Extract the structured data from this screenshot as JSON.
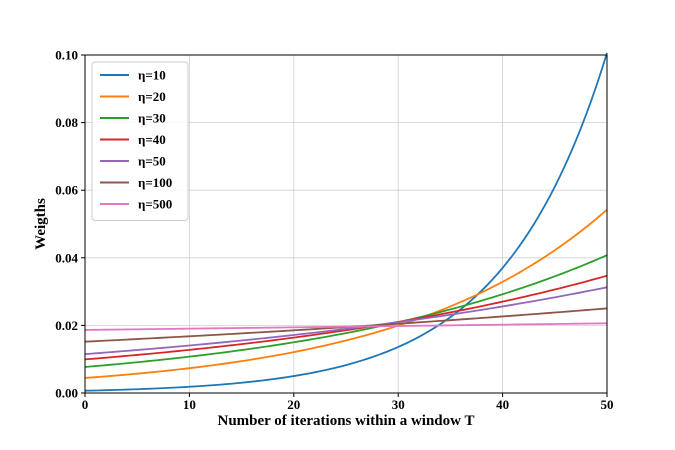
{
  "chart_data": {
    "type": "line",
    "title": "",
    "xlabel": "Number of iterations within a window T",
    "ylabel": "Weigths",
    "xlim": [
      0,
      50
    ],
    "ylim": [
      0,
      0.1
    ],
    "xticks": [
      "0",
      "10",
      "20",
      "30",
      "40",
      "50"
    ],
    "yticks": [
      "0.00",
      "0.02",
      "0.04",
      "0.06",
      "0.08",
      "0.10"
    ],
    "grid": true,
    "legend_position": "top-left",
    "x": [
      0,
      2.5,
      5,
      7.5,
      10,
      12.5,
      15,
      17.5,
      20,
      22.5,
      25,
      27.5,
      30,
      32.5,
      35,
      37.5,
      40,
      42.5,
      45,
      47.5,
      50
    ],
    "series": [
      {
        "name": "η=10",
        "eta": 10,
        "color": "#1f77b4",
        "values": [
          0.00066,
          0.00085,
          0.00109,
          0.0014,
          0.0018,
          0.0023,
          0.00296,
          0.00381,
          0.0049,
          0.00629,
          0.00808,
          0.01038,
          0.01333,
          0.01711,
          0.02197,
          0.02822,
          0.03624,
          0.04653,
          0.05975,
          0.07672,
          0.0985
        ]
      },
      {
        "name": "η=20",
        "eta": 20,
        "color": "#ff7f0e",
        "values": [
          0.00445,
          0.00504,
          0.00571,
          0.00647,
          0.00733,
          0.00831,
          0.00942,
          0.01067,
          0.01209,
          0.0137,
          0.01553,
          0.0176,
          0.01994,
          0.0226,
          0.02561,
          0.02902,
          0.03288,
          0.03726,
          0.04222,
          0.04785,
          0.05422
        ]
      },
      {
        "name": "η=30",
        "eta": 30,
        "color": "#2ca02c",
        "values": [
          0.00774,
          0.00839,
          0.00911,
          0.00989,
          0.01073,
          0.01164,
          0.01263,
          0.01371,
          0.01488,
          0.01615,
          0.01752,
          0.01902,
          0.02064,
          0.0224,
          0.02431,
          0.02638,
          0.02863,
          0.03107,
          0.03372,
          0.03659,
          0.03971
        ]
      },
      {
        "name": "η=40",
        "eta": 40,
        "color": "#d62728",
        "values": [
          0.01005,
          0.0107,
          0.01139,
          0.01212,
          0.0129,
          0.01373,
          0.01462,
          0.01556,
          0.01657,
          0.01764,
          0.01877,
          0.01998,
          0.02127,
          0.02265,
          0.02411,
          0.02566,
          0.02732,
          0.02908,
          0.03095,
          0.03295,
          0.03508
        ]
      },
      {
        "name": "η=50",
        "eta": 50,
        "color": "#9467bd",
        "values": [
          0.01166,
          0.01225,
          0.01288,
          0.01354,
          0.01423,
          0.01496,
          0.01572,
          0.01653,
          0.01737,
          0.01826,
          0.0192,
          0.02018,
          0.02121,
          0.0223,
          0.02344,
          0.02464,
          0.0259,
          0.02723,
          0.02862,
          0.03009,
          0.03163
        ]
      },
      {
        "name": "η=100",
        "eta": 100,
        "color": "#8c564b",
        "values": [
          0.01536,
          0.01575,
          0.01614,
          0.01655,
          0.01697,
          0.01739,
          0.01783,
          0.01828,
          0.01874,
          0.01921,
          0.01969,
          0.02019,
          0.0207,
          0.02122,
          0.02175,
          0.0223,
          0.02286,
          0.02344,
          0.02403,
          0.02463,
          0.02525
        ]
      },
      {
        "name": "η=500",
        "eta": 500,
        "color": "#e377c2",
        "values": [
          0.0189,
          0.01899,
          0.01909,
          0.01918,
          0.01928,
          0.01937,
          0.01947,
          0.01957,
          0.01966,
          0.01976,
          0.01986,
          0.01996,
          0.02006,
          0.02016,
          0.02026,
          0.02036,
          0.02046,
          0.02057,
          0.02067,
          0.02077,
          0.02088
        ]
      }
    ]
  }
}
